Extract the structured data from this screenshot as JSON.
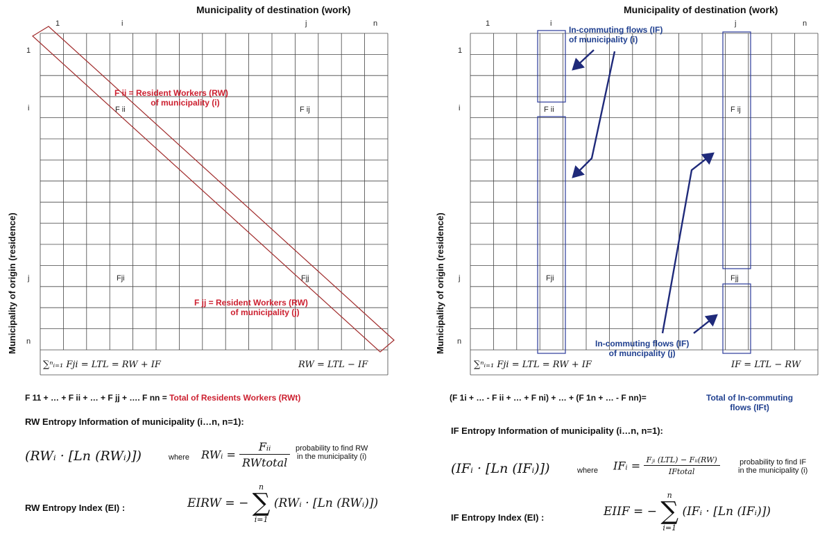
{
  "left_panel": {
    "title": "Municipality of destination (work)",
    "ylabel": "Municipality of origin (residence)",
    "col_labels": [
      "1",
      "i",
      "j",
      "n"
    ],
    "row_labels": [
      "1",
      "i",
      "j",
      "n"
    ],
    "cells": {
      "fii": "F ii",
      "fij": "F ij",
      "fji": "Fji",
      "fjj": "Fjj"
    },
    "annot_rw_i": [
      "F ii = Resident Workers (RW)",
      "of municipality (i)"
    ],
    "annot_rw_j": [
      "F jj = Resident Workers (RW)",
      "of municipality (j)"
    ],
    "sum_formula": "∑ⁿᵢ₌₁ Fji = LTL = RW + IF",
    "right_formula": "RW = LTL − IF",
    "total_black": "F 11 + … + F ii + … + F jj + …. F nn = ",
    "total_red": "Total of Residents Workers (RWt)",
    "entropy_info_title": "RW Entropy Information of municipality (i…n, n=1):",
    "entropy_expr": "(RWᵢ · [Ln (RWᵢ)])",
    "where": "where",
    "prob_lhs": "RWᵢ =",
    "prob_num": "Fᵢᵢ",
    "prob_den": "RWtotal",
    "prob_text": [
      "probability to find RW",
      "in the municipality (i)"
    ],
    "index_title": "RW Entropy Index (EI) :",
    "index_lhs": "EIRW = −",
    "index_sum_top": "n",
    "index_sum_bottom": "i=1",
    "index_sigma": "∑",
    "index_rhs": "(RWᵢ · [Ln (RWᵢ)])"
  },
  "right_panel": {
    "title": "Municipality of destination (work)",
    "ylabel": "Municipality of origin (residence)",
    "col_labels": [
      "1",
      "i",
      "j",
      "n"
    ],
    "row_labels": [
      "1",
      "i",
      "j",
      "n"
    ],
    "cells": {
      "fii": "F ii",
      "fij": "F ij",
      "fji": "Fji",
      "fjj": "Fjj"
    },
    "annot_if_i": [
      "In-commuting flows (IF)",
      "of municipality (i)"
    ],
    "annot_if_j": [
      "In-commuting flows (IF)",
      "of muncipality (j)"
    ],
    "sum_formula": "∑ⁿᵢ₌₁ Fji = LTL = RW + IF",
    "right_formula": "IF = LTL − RW",
    "total_black": "(F 1i + … - F ii + … + F ni) + … + (F 1n + …  - F nn)= ",
    "total_blue": [
      "Total of In-commuting",
      "flows (IFt)"
    ],
    "entropy_info_title": "IF Entropy Information of municipality (i…n, n=1):",
    "entropy_expr": "(IFᵢ · [Ln (IFᵢ)])",
    "where": "where",
    "prob_lhs": "IFᵢ =",
    "prob_num": "Fⱼᵢ (LTL) − Fᵢᵢ(RW)",
    "prob_den": "IFtotal",
    "prob_text": [
      "probability to find IF",
      "in the municipality (i)"
    ],
    "index_title": "IF Entropy Index (EI) :",
    "index_lhs": "EIIF = −",
    "index_sum_top": "n",
    "index_sum_bottom": "i=1",
    "index_sigma": "∑",
    "index_rhs": "(IFᵢ · [Ln (IFᵢ)])"
  }
}
